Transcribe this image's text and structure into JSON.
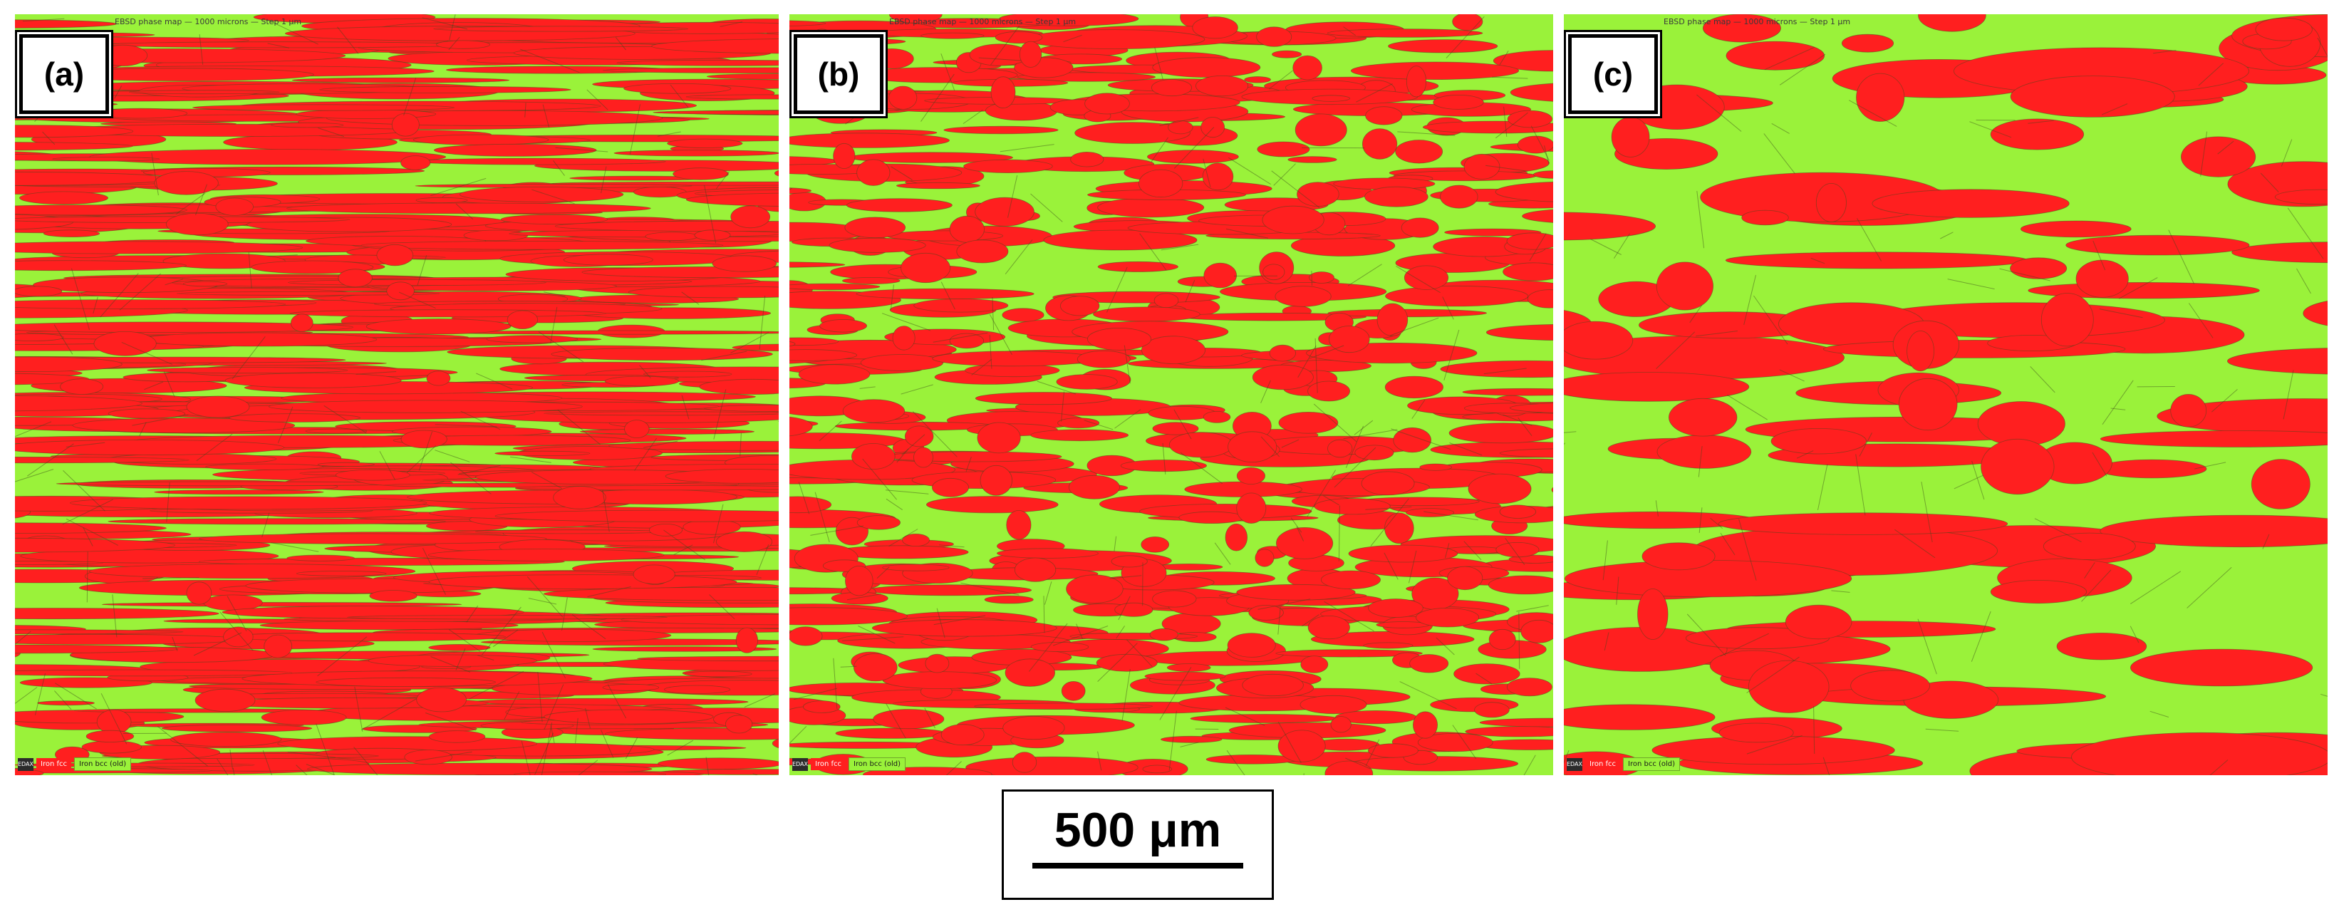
{
  "figure": {
    "panels": [
      {
        "id": "a",
        "label": "(a)",
        "header": "EBSD phase map — 1000 microns — Step 1 μm",
        "legend": {
          "logo": "EDAX",
          "red": "Iron fcc",
          "green": "Iron bcc (old)"
        },
        "texture": "fine"
      },
      {
        "id": "b",
        "label": "(b)",
        "header": "EBSD phase map — 1000 microns — Step 1 μm",
        "legend": {
          "logo": "EDAX",
          "red": "Iron fcc",
          "green": "Iron bcc (old)"
        },
        "texture": "medium"
      },
      {
        "id": "c",
        "label": "(c)",
        "header": "EBSD phase map — 1000 microns — Step 1 μm",
        "legend": {
          "logo": "EDAX",
          "red": "Iron fcc",
          "green": "Iron bcc (old)"
        },
        "texture": "coarse"
      }
    ],
    "scale_bar": {
      "label": "500 μm"
    },
    "colors": {
      "red_phase": "#ff1f1f",
      "green_phase": "#9af23a",
      "boundary": "#3a4a1a"
    }
  }
}
